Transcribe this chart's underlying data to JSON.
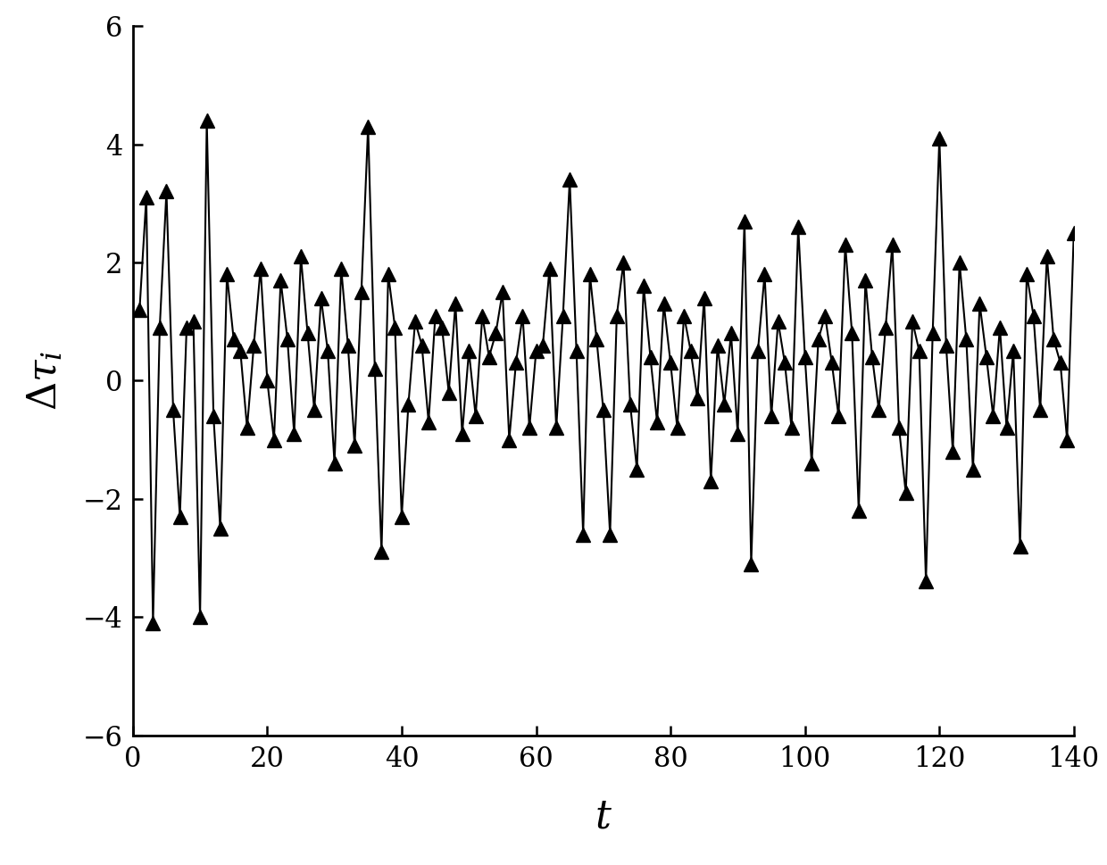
{
  "title": "",
  "xlabel": "$t$",
  "ylabel": "$\\Delta\\tau_{i}$",
  "xlim": [
    0,
    140
  ],
  "ylim": [
    -6,
    6
  ],
  "xticks": [
    0,
    20,
    40,
    60,
    80,
    100,
    120,
    140
  ],
  "yticks": [
    -6,
    -4,
    -2,
    0,
    2,
    4,
    6
  ],
  "background_color": "#ffffff",
  "line_color": "#000000",
  "marker_color": "#000000",
  "marker": "^",
  "marker_size": 12,
  "line_width": 1.5,
  "x": [
    1,
    2,
    3,
    4,
    5,
    6,
    7,
    8,
    9,
    10,
    11,
    12,
    13,
    14,
    15,
    16,
    17,
    18,
    19,
    20,
    21,
    22,
    23,
    24,
    25,
    26,
    27,
    28,
    29,
    30,
    31,
    32,
    33,
    34,
    35,
    36,
    37,
    38,
    39,
    40,
    41,
    42,
    43,
    44,
    45,
    46,
    47,
    48,
    49,
    50,
    51,
    52,
    53,
    54,
    55,
    56,
    57,
    58,
    59,
    60,
    61,
    62,
    63,
    64,
    65,
    66,
    67,
    68,
    69,
    70,
    71,
    72,
    73,
    74,
    75,
    76,
    77,
    78,
    79,
    80,
    81,
    82,
    83,
    84,
    85,
    86,
    87,
    88,
    89,
    90,
    91,
    92,
    93,
    94,
    95,
    96,
    97,
    98,
    99,
    100,
    101,
    102,
    103,
    104,
    105,
    106,
    107,
    108,
    109,
    110,
    111,
    112,
    113,
    114,
    115,
    116,
    117,
    118,
    119,
    120,
    121,
    122,
    123,
    124,
    125,
    126,
    127,
    128,
    129,
    130,
    131,
    132,
    133,
    134,
    135,
    136,
    137,
    138,
    139,
    140
  ],
  "y": [
    1.2,
    3.1,
    -4.1,
    0.9,
    3.2,
    -0.5,
    -2.3,
    0.9,
    1.0,
    -4.0,
    4.4,
    -0.6,
    -2.5,
    1.8,
    0.7,
    0.5,
    -0.8,
    0.6,
    1.9,
    0.0,
    -1.0,
    1.7,
    0.7,
    -0.9,
    2.1,
    0.8,
    -0.5,
    1.4,
    0.5,
    -1.4,
    1.9,
    0.6,
    -1.1,
    1.5,
    4.3,
    0.2,
    -2.9,
    1.8,
    0.9,
    -2.3,
    -0.4,
    1.0,
    0.6,
    -0.7,
    1.1,
    0.9,
    -0.2,
    1.3,
    -0.9,
    0.5,
    -0.6,
    1.1,
    0.4,
    0.8,
    1.5,
    -1.0,
    0.3,
    1.1,
    -0.8,
    0.5,
    0.6,
    1.9,
    -0.8,
    1.1,
    3.4,
    0.5,
    -2.6,
    1.8,
    0.7,
    -0.5,
    -2.6,
    1.1,
    2.0,
    -0.4,
    -1.5,
    1.6,
    0.4,
    -0.7,
    1.3,
    0.3,
    -0.8,
    1.1,
    0.5,
    -0.3,
    1.4,
    -1.7,
    0.6,
    -0.4,
    0.8,
    -0.9,
    2.7,
    -3.1,
    0.5,
    1.8,
    -0.6,
    1.0,
    0.3,
    -0.8,
    2.6,
    0.4,
    -1.4,
    0.7,
    1.1,
    0.3,
    -0.6,
    2.3,
    0.8,
    -2.2,
    1.7,
    0.4,
    -0.5,
    0.9,
    2.3,
    -0.8,
    -1.9,
    1.0,
    0.5,
    -3.4,
    0.8,
    4.1,
    0.6,
    -1.2,
    2.0,
    0.7,
    -1.5,
    1.3,
    0.4,
    -0.6,
    0.9,
    -0.8,
    0.5,
    -2.8,
    1.8,
    1.1,
    -0.5,
    2.1,
    0.7,
    0.3,
    -1.0,
    2.5
  ]
}
